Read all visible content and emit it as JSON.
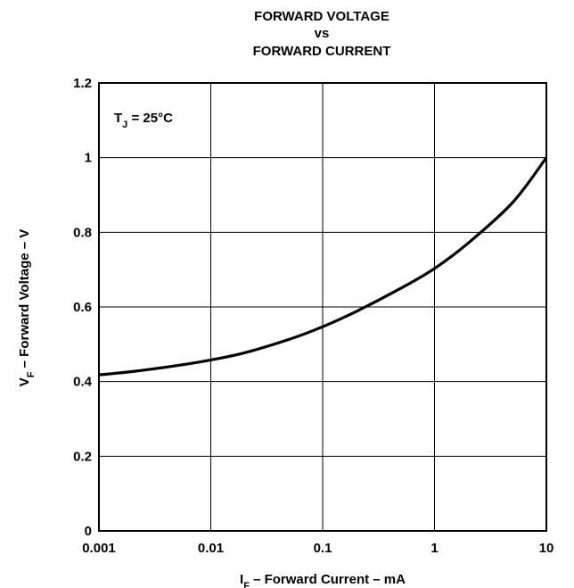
{
  "chart_data": {
    "type": "line",
    "title_lines": [
      "FORWARD VOLTAGE",
      "vs",
      "FORWARD CURRENT"
    ],
    "xlabel": {
      "main": "I",
      "sub": "F",
      "rest": " – Forward Current – mA"
    },
    "ylabel": {
      "main": "V",
      "sub": "F",
      "rest": " – Forward Voltage – V"
    },
    "x_scale": "log",
    "xlim": [
      0.001,
      10
    ],
    "ylim": [
      0,
      1.2
    ],
    "x_ticks": [
      {
        "value": 0.001,
        "label": "0.001"
      },
      {
        "value": 0.01,
        "label": "0.01"
      },
      {
        "value": 0.1,
        "label": "0.1"
      },
      {
        "value": 1,
        "label": "1"
      },
      {
        "value": 10,
        "label": "10"
      }
    ],
    "y_ticks": [
      {
        "value": 0,
        "label": "0"
      },
      {
        "value": 0.2,
        "label": "0.2"
      },
      {
        "value": 0.4,
        "label": "0.4"
      },
      {
        "value": 0.6,
        "label": "0.6"
      },
      {
        "value": 0.8,
        "label": "0.8"
      },
      {
        "value": 1,
        "label": "1"
      },
      {
        "value": 1.2,
        "label": "1.2"
      }
    ],
    "grid": true,
    "annotation": {
      "main": "T",
      "sub": "J",
      "rest": " = 25°C"
    },
    "series": [
      {
        "x": [
          0.001,
          0.002,
          0.005,
          0.01,
          0.02,
          0.05,
          0.1,
          0.2,
          0.5,
          1,
          2,
          5,
          10
        ],
        "y": [
          0.418,
          0.427,
          0.443,
          0.458,
          0.477,
          0.513,
          0.547,
          0.588,
          0.65,
          0.703,
          0.771,
          0.88,
          1.0
        ]
      }
    ]
  }
}
